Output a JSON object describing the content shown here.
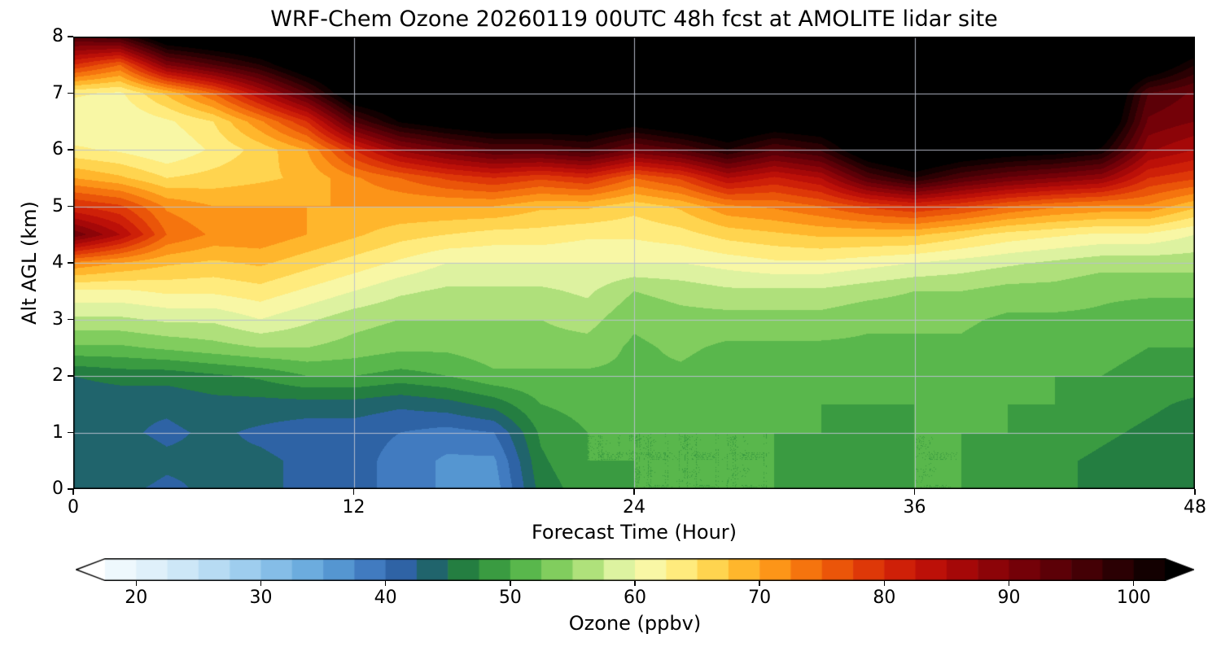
{
  "chart_data": {
    "type": "heatmap",
    "title": "WRF-Chem Ozone  20260119 00UTC 48h fcst at AMOLITE lidar site",
    "xlabel": "Forecast Time (Hour)",
    "ylabel": "Alt AGL (km)",
    "colorbar_label": "Ozone  (ppbv)",
    "xlim": [
      0,
      48
    ],
    "ylim": [
      0,
      8
    ],
    "xticks": [
      0,
      12,
      24,
      36,
      48
    ],
    "yticks": [
      0,
      1,
      2,
      3,
      4,
      5,
      6,
      7,
      8
    ],
    "colorbar_ticks": [
      20,
      30,
      40,
      50,
      60,
      70,
      80,
      90,
      100
    ],
    "colorbar_range": [
      17.5,
      102.5
    ],
    "contour_interval_ppbv": 2.5,
    "grid_on": true,
    "grid_color": "rgba(185,192,205,0.95)",
    "over_range_color": "#000000",
    "under_range_color": "#ffffff",
    "colormap_stops": [
      [
        15,
        "#ffffff"
      ],
      [
        20,
        "#e8f5fc"
      ],
      [
        25,
        "#c4e2f5"
      ],
      [
        30,
        "#91c6eb"
      ],
      [
        35,
        "#5fa3d9"
      ],
      [
        40,
        "#376eb8"
      ],
      [
        42.5,
        "#265892"
      ],
      [
        45,
        "#197046"
      ],
      [
        47.5,
        "#2e8c3c"
      ],
      [
        50,
        "#46aa46"
      ],
      [
        52.5,
        "#6cc452"
      ],
      [
        55,
        "#96d66a"
      ],
      [
        57.5,
        "#c8eb8c"
      ],
      [
        60,
        "#f2fab4"
      ],
      [
        62.5,
        "#fff496"
      ],
      [
        65,
        "#ffe264"
      ],
      [
        67.5,
        "#ffc63a"
      ],
      [
        70,
        "#ffa51e"
      ],
      [
        72.5,
        "#fa8412"
      ],
      [
        75,
        "#f0640a"
      ],
      [
        77.5,
        "#e54608"
      ],
      [
        80,
        "#d72a08"
      ],
      [
        82.5,
        "#c61608"
      ],
      [
        85,
        "#b20a08"
      ],
      [
        87.5,
        "#980508"
      ],
      [
        90,
        "#800208"
      ],
      [
        92.5,
        "#680008"
      ],
      [
        95,
        "#500006"
      ],
      [
        97.5,
        "#380004"
      ],
      [
        100,
        "#1e0002"
      ],
      [
        102.5,
        "#080000"
      ],
      [
        105,
        "#000000"
      ]
    ],
    "x_hours": [
      0,
      2,
      4,
      6,
      8,
      10,
      12,
      14,
      16,
      18,
      20,
      22,
      24,
      26,
      28,
      30,
      32,
      34,
      36,
      38,
      40,
      42,
      44,
      46,
      48
    ],
    "y_km": [
      0,
      0.5,
      1,
      1.5,
      2,
      2.5,
      3,
      3.5,
      4,
      4.5,
      5,
      5.5,
      6,
      6.5,
      7,
      7.5,
      8
    ],
    "grid_rows_y0_to_y8": [
      [
        44,
        43,
        42,
        43,
        43,
        42,
        41,
        39,
        37,
        36,
        46,
        49,
        50,
        50,
        50,
        50,
        49,
        49,
        50,
        50,
        49,
        48,
        47,
        46,
        46
      ],
      [
        44,
        44,
        43,
        43,
        43,
        42,
        41,
        39,
        37,
        37,
        47,
        50,
        50,
        50,
        50,
        50,
        49,
        49,
        50,
        50,
        49,
        48,
        47,
        46,
        46
      ],
      [
        43,
        43,
        42,
        43,
        42,
        41,
        41,
        40,
        39,
        40,
        48,
        50,
        50,
        50,
        50,
        50,
        50,
        49,
        50,
        50,
        50,
        49,
        48,
        47,
        46
      ],
      [
        43,
        43,
        43,
        44,
        44,
        44,
        44,
        43,
        44,
        46,
        50,
        51,
        51,
        51,
        51,
        51,
        50,
        50,
        50,
        51,
        50,
        50,
        49,
        48,
        47
      ],
      [
        45,
        46,
        46,
        47,
        48,
        50,
        50,
        49,
        50,
        52,
        52,
        52,
        52,
        52,
        51,
        51,
        51,
        51,
        51,
        51,
        51,
        50,
        50,
        49,
        49
      ],
      [
        52,
        52,
        53,
        54,
        55,
        55,
        54,
        53,
        53,
        54,
        54,
        54,
        52,
        53,
        52,
        52,
        52,
        52,
        52,
        52,
        51,
        51,
        51,
        50,
        50
      ],
      [
        57,
        57,
        58,
        58,
        60,
        58,
        56,
        55,
        55,
        55,
        55,
        56,
        53,
        54,
        54,
        54,
        54,
        53,
        53,
        53,
        52,
        52,
        52,
        51,
        51
      ],
      [
        62,
        62,
        63,
        63,
        64,
        62,
        60,
        58,
        57,
        57,
        57,
        58,
        55,
        56,
        57,
        57,
        57,
        56,
        55,
        55,
        54,
        54,
        53,
        53,
        53
      ],
      [
        72,
        70,
        68,
        67,
        68,
        66,
        64,
        62,
        60,
        60,
        60,
        60,
        60,
        60,
        61,
        62,
        62,
        61,
        60,
        59,
        58,
        57,
        56,
        56,
        56
      ],
      [
        92,
        85,
        75,
        72,
        72,
        70,
        68,
        66,
        65,
        64,
        64,
        63,
        63,
        64,
        66,
        67,
        68,
        68,
        68,
        66,
        64,
        63,
        62,
        62,
        60
      ],
      [
        80,
        78,
        72,
        70,
        70,
        70,
        70,
        70,
        70,
        70,
        68,
        68,
        66,
        68,
        72,
        73,
        75,
        78,
        80,
        78,
        75,
        73,
        72,
        72,
        68
      ],
      [
        70,
        68,
        65,
        66,
        67,
        68,
        72,
        75,
        78,
        80,
        78,
        80,
        75,
        78,
        85,
        82,
        85,
        95,
        100,
        95,
        92,
        90,
        88,
        80,
        78
      ],
      [
        63,
        62,
        60,
        63,
        66,
        70,
        80,
        88,
        92,
        95,
        95,
        97,
        92,
        95,
        100,
        95,
        98,
        108,
        112,
        108,
        106,
        105,
        102,
        88,
        85
      ],
      [
        60,
        60,
        62,
        65,
        72,
        80,
        95,
        103,
        106,
        108,
        108,
        108,
        105,
        108,
        110,
        107,
        108,
        112,
        112,
        112,
        112,
        112,
        110,
        92,
        90
      ],
      [
        63,
        62,
        68,
        75,
        85,
        95,
        108,
        110,
        112,
        112,
        112,
        112,
        112,
        112,
        112,
        112,
        112,
        112,
        112,
        112,
        112,
        112,
        112,
        95,
        92
      ],
      [
        80,
        75,
        90,
        95,
        100,
        108,
        112,
        112,
        112,
        112,
        112,
        112,
        112,
        112,
        112,
        112,
        112,
        112,
        112,
        112,
        112,
        112,
        112,
        108,
        100
      ],
      [
        95,
        97,
        108,
        110,
        112,
        112,
        112,
        112,
        112,
        112,
        112,
        112,
        112,
        112,
        112,
        112,
        112,
        112,
        112,
        112,
        112,
        112,
        112,
        112,
        110
      ]
    ]
  }
}
